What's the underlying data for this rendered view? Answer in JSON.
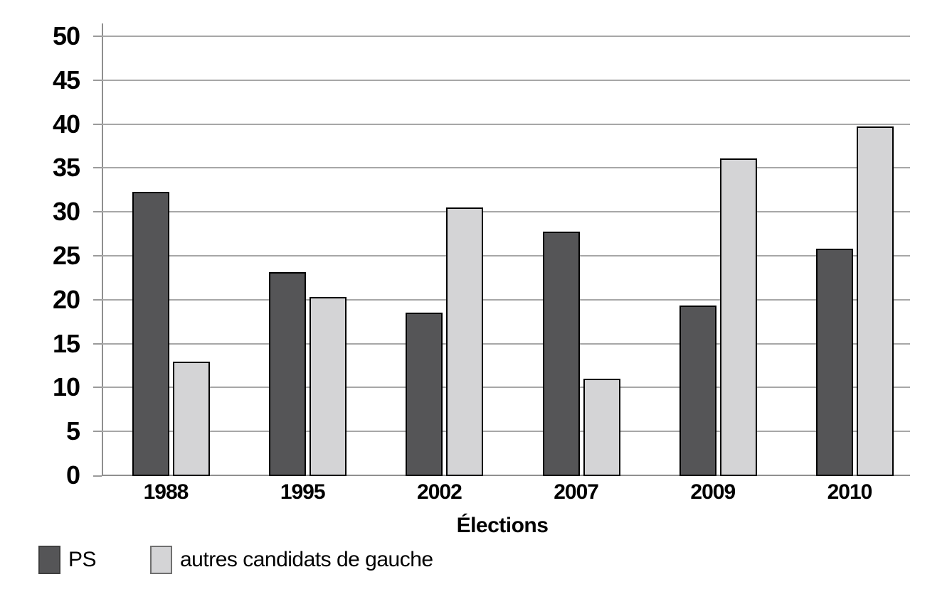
{
  "chart_data": {
    "type": "bar",
    "categories": [
      "1988",
      "1995",
      "2002",
      "2007",
      "2009",
      "2010"
    ],
    "series": [
      {
        "name": "PS",
        "color": "#555557",
        "border_color": "#000000",
        "values": [
          32.4,
          23.2,
          18.6,
          27.8,
          19.4,
          25.9
        ]
      },
      {
        "name": "autres candidats de gauche",
        "color": "#d4d4d6",
        "border_color": "#000000",
        "values": [
          13.0,
          20.4,
          30.6,
          11.1,
          36.2,
          39.8
        ]
      }
    ],
    "title": "",
    "xlabel": "Élections",
    "ylabel": "",
    "ylim": [
      0,
      50
    ],
    "ytick_step": 5,
    "yticks": [
      0,
      5,
      10,
      15,
      20,
      25,
      30,
      35,
      40,
      45,
      50
    ],
    "grid": true,
    "legend_position": "bottom-left",
    "gridline_color": "#a7a7a7",
    "axis_color": "#8f8f8f",
    "legend_swatch_borders": [
      "#3f3f3f",
      "#6f6f6f"
    ]
  }
}
